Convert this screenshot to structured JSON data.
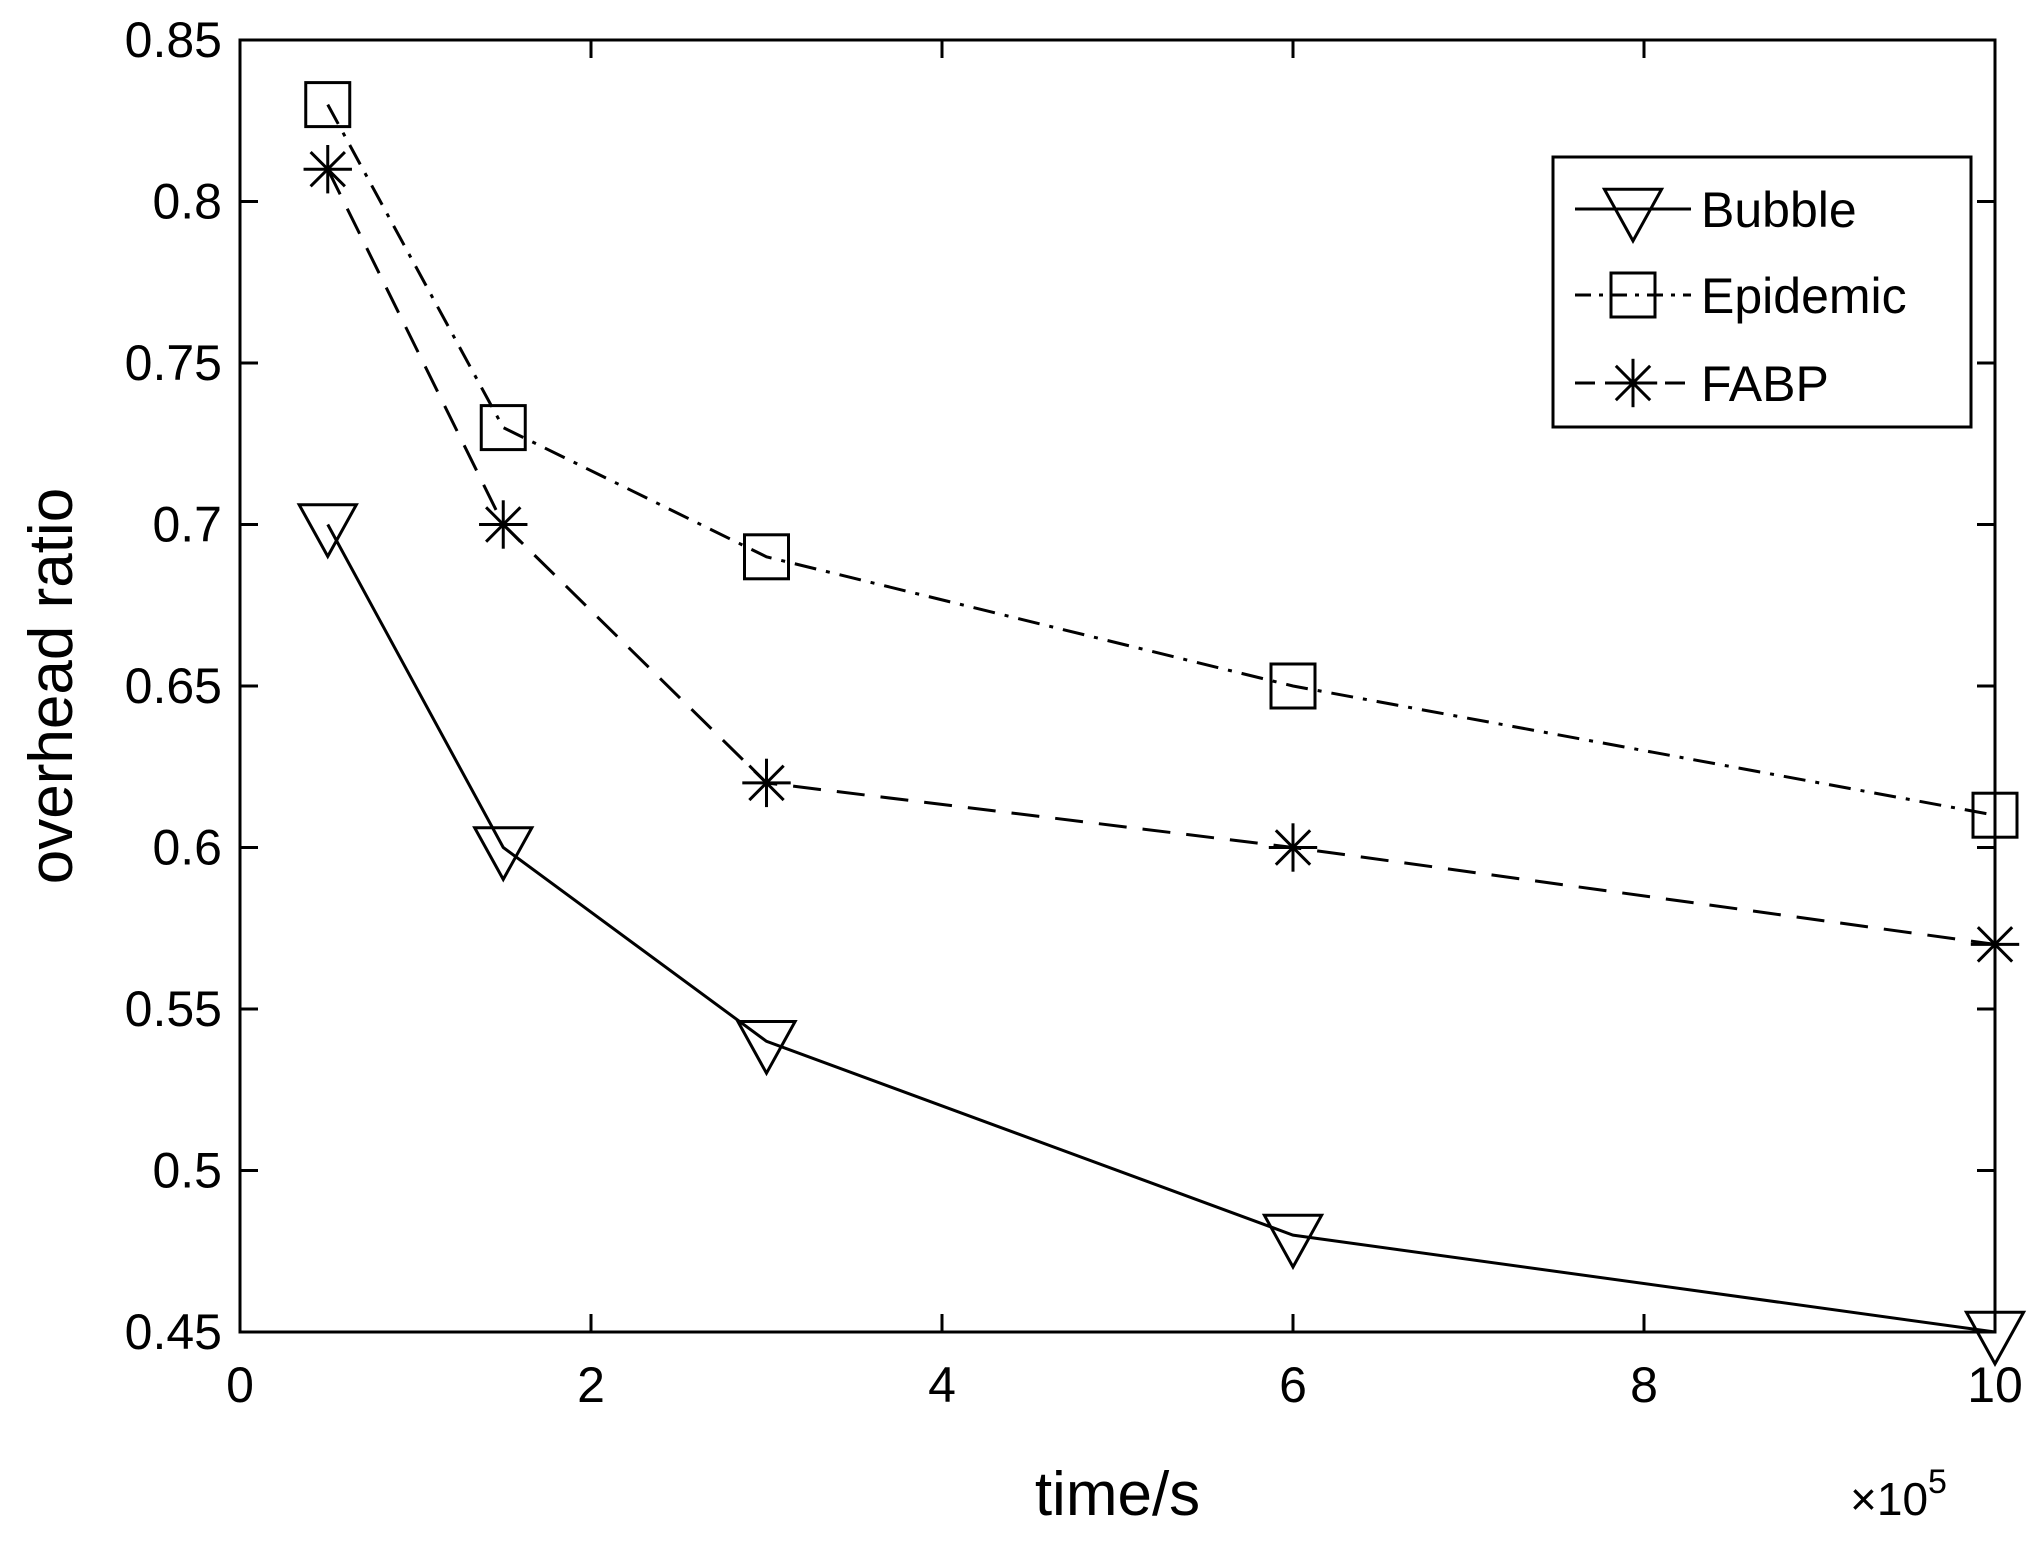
{
  "chart_data": {
    "type": "line",
    "xlabel": "time/s",
    "ylabel": "overhead ratio",
    "x_multiplier_label": "×10",
    "x_multiplier_exponent": "5",
    "xlim": [
      0,
      10
    ],
    "ylim": [
      0.45,
      0.85
    ],
    "xticks": [
      0,
      2,
      4,
      6,
      8,
      10
    ],
    "xtick_labels": [
      "0",
      "2",
      "4",
      "6",
      "8",
      "10"
    ],
    "yticks": [
      0.45,
      0.5,
      0.55,
      0.6,
      0.65,
      0.7,
      0.75,
      0.8,
      0.85
    ],
    "ytick_labels": [
      "0.45",
      "0.5",
      "0.55",
      "0.6",
      "0.65",
      "0.7",
      "0.75",
      "0.8",
      "0.85"
    ],
    "grid": false,
    "legend_position": "top-right",
    "x": [
      0.5,
      1.5,
      3,
      6,
      10
    ],
    "series": [
      {
        "name": "Bubble",
        "values": [
          0.7,
          0.6,
          0.54,
          0.48,
          0.45
        ],
        "line_style": "solid",
        "marker": "triangle-down"
      },
      {
        "name": "Epidemic",
        "values": [
          0.83,
          0.73,
          0.69,
          0.65,
          0.61
        ],
        "line_style": "dash-dot",
        "marker": "square"
      },
      {
        "name": "FABP",
        "values": [
          0.81,
          0.7,
          0.62,
          0.6,
          0.57
        ],
        "line_style": "dashed",
        "marker": "asterisk"
      }
    ],
    "colors": {
      "line": "#000000",
      "background": "#ffffff"
    }
  }
}
